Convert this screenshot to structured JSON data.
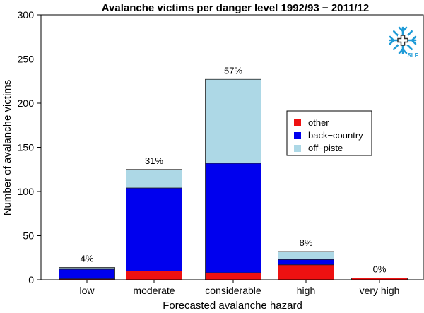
{
  "chart_data": {
    "type": "bar",
    "stacked": true,
    "title": "Avalanche victims per danger level 1992/93 − 2011/12",
    "xlabel": "Forecasted avalanche hazard",
    "ylabel": "Number of avalanche victims",
    "ylim": [
      0,
      300
    ],
    "yticks": [
      0,
      50,
      100,
      150,
      200,
      250,
      300
    ],
    "grid": false,
    "legend_position": "right",
    "categories": [
      "low",
      "moderate",
      "considerable",
      "high",
      "very high"
    ],
    "series": [
      {
        "name": "other",
        "color": "#ee1111",
        "values": [
          1,
          10,
          8,
          17,
          2
        ]
      },
      {
        "name": "back−country",
        "color": "#0000ee",
        "values": [
          11,
          94,
          124,
          6,
          0
        ]
      },
      {
        "name": "off−piste",
        "color": "#add8e6",
        "values": [
          2,
          21,
          95,
          9,
          0
        ]
      }
    ],
    "percent_labels": [
      "4%",
      "31%",
      "57%",
      "8%",
      "0%"
    ]
  },
  "logo": {
    "text": "SLF",
    "icon": "snowflake-cross-icon",
    "color": "#1f9bd7"
  }
}
